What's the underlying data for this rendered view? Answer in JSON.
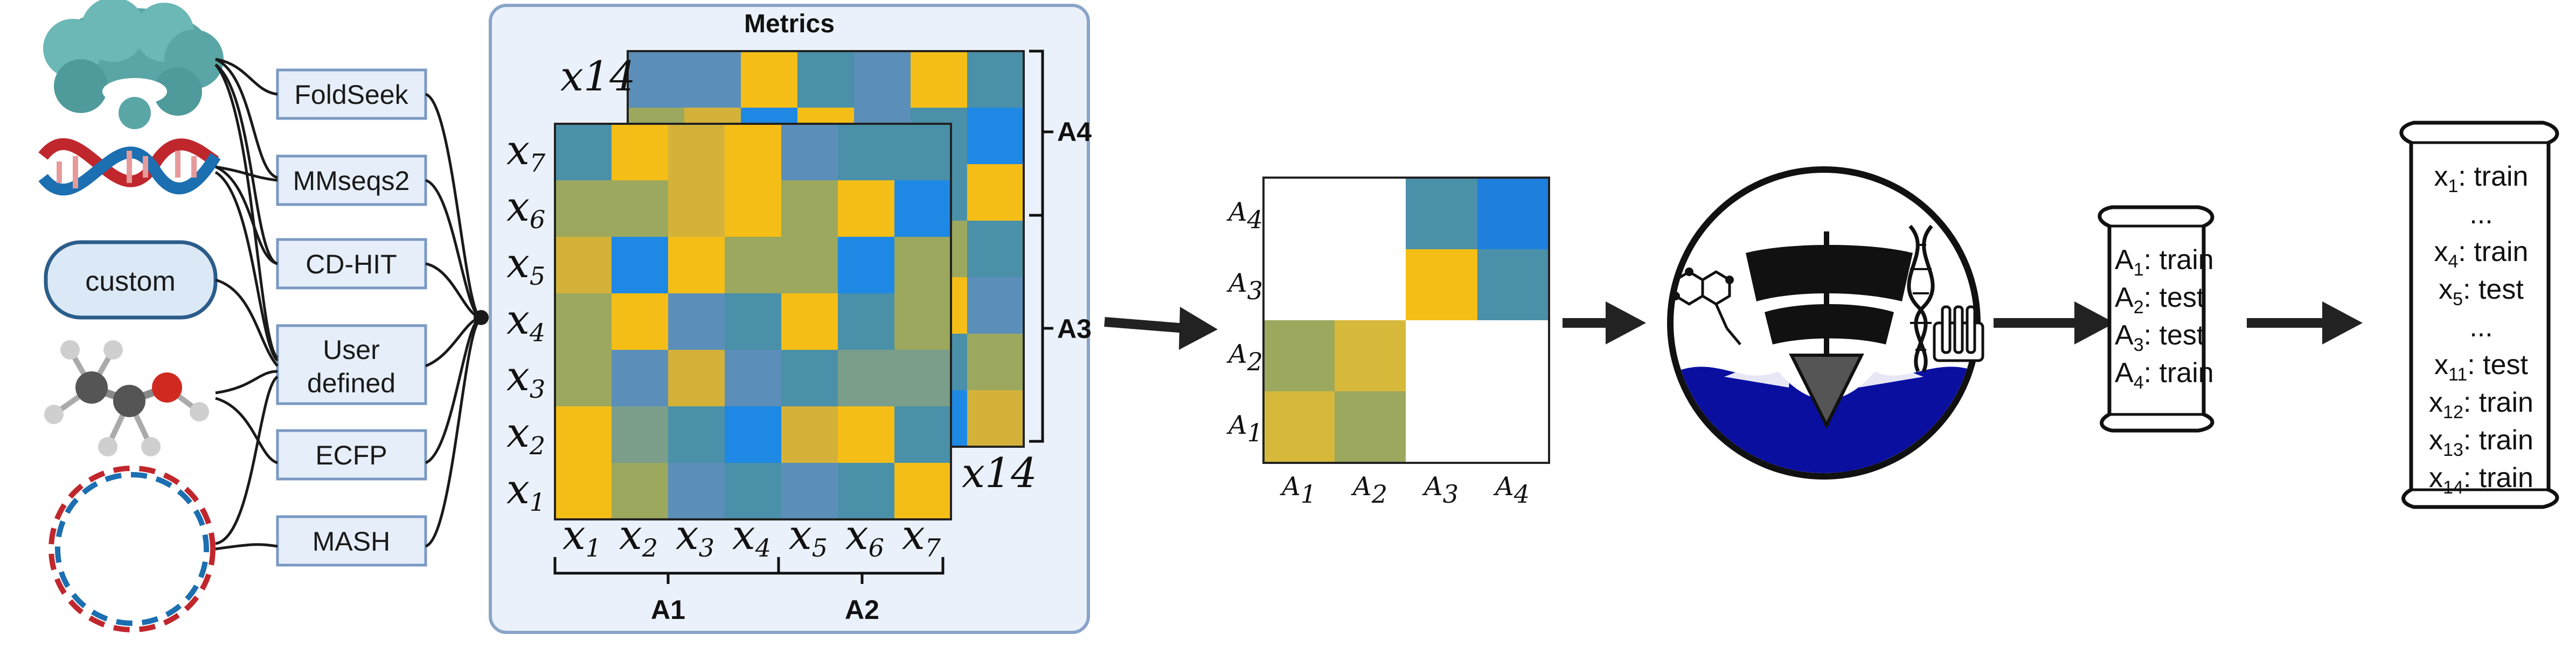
{
  "inputs": {
    "custom_label": "custom"
  },
  "methods": [
    "FoldSeek",
    "MMseqs2",
    "CD-HIT",
    "User defined",
    "ECFP",
    "MASH"
  ],
  "metrics_panel": {
    "title": "Metrics",
    "front_rows": [
      "x7",
      "x6",
      "x5",
      "x4",
      "x3",
      "x2",
      "x1"
    ],
    "front_cols": [
      "x1",
      "x2",
      "x3",
      "x4",
      "x5",
      "x6",
      "x7"
    ],
    "back_label_top": "x14",
    "back_label_bottom": "x14",
    "col_groups": [
      "A1",
      "A2"
    ],
    "row_groups": [
      "A4",
      "A3"
    ],
    "colors": {
      "yellow": "#f5be17",
      "blue": "#1e88e5",
      "teal": "#4a90a8",
      "olive": "#9ba85e",
      "panel_bg": "#eaf1fa",
      "panel_border": "#8aa4c8"
    }
  },
  "cluster_matrix": {
    "row_labels": [
      "A4",
      "A3",
      "A2",
      "A1"
    ],
    "col_labels": [
      "A1",
      "A2",
      "A3",
      "A4"
    ]
  },
  "scroll_small": [
    {
      "item": "A1",
      "split": "train"
    },
    {
      "item": "A2",
      "split": "test"
    },
    {
      "item": "A3",
      "split": "test"
    },
    {
      "item": "A4",
      "split": "train"
    }
  ],
  "scroll_large": [
    {
      "text": "x1: train"
    },
    {
      "text": "..."
    },
    {
      "text": "x4: train"
    },
    {
      "text": "x5: test"
    },
    {
      "text": "..."
    },
    {
      "text": "x11: test"
    },
    {
      "text": "x12: train"
    },
    {
      "text": "x13: train"
    },
    {
      "text": "x14: train"
    }
  ],
  "icons": [
    "protein-icon",
    "dna-helix-icon",
    "molecule-icon",
    "plasmid-icon",
    "ship-logo-icon"
  ]
}
